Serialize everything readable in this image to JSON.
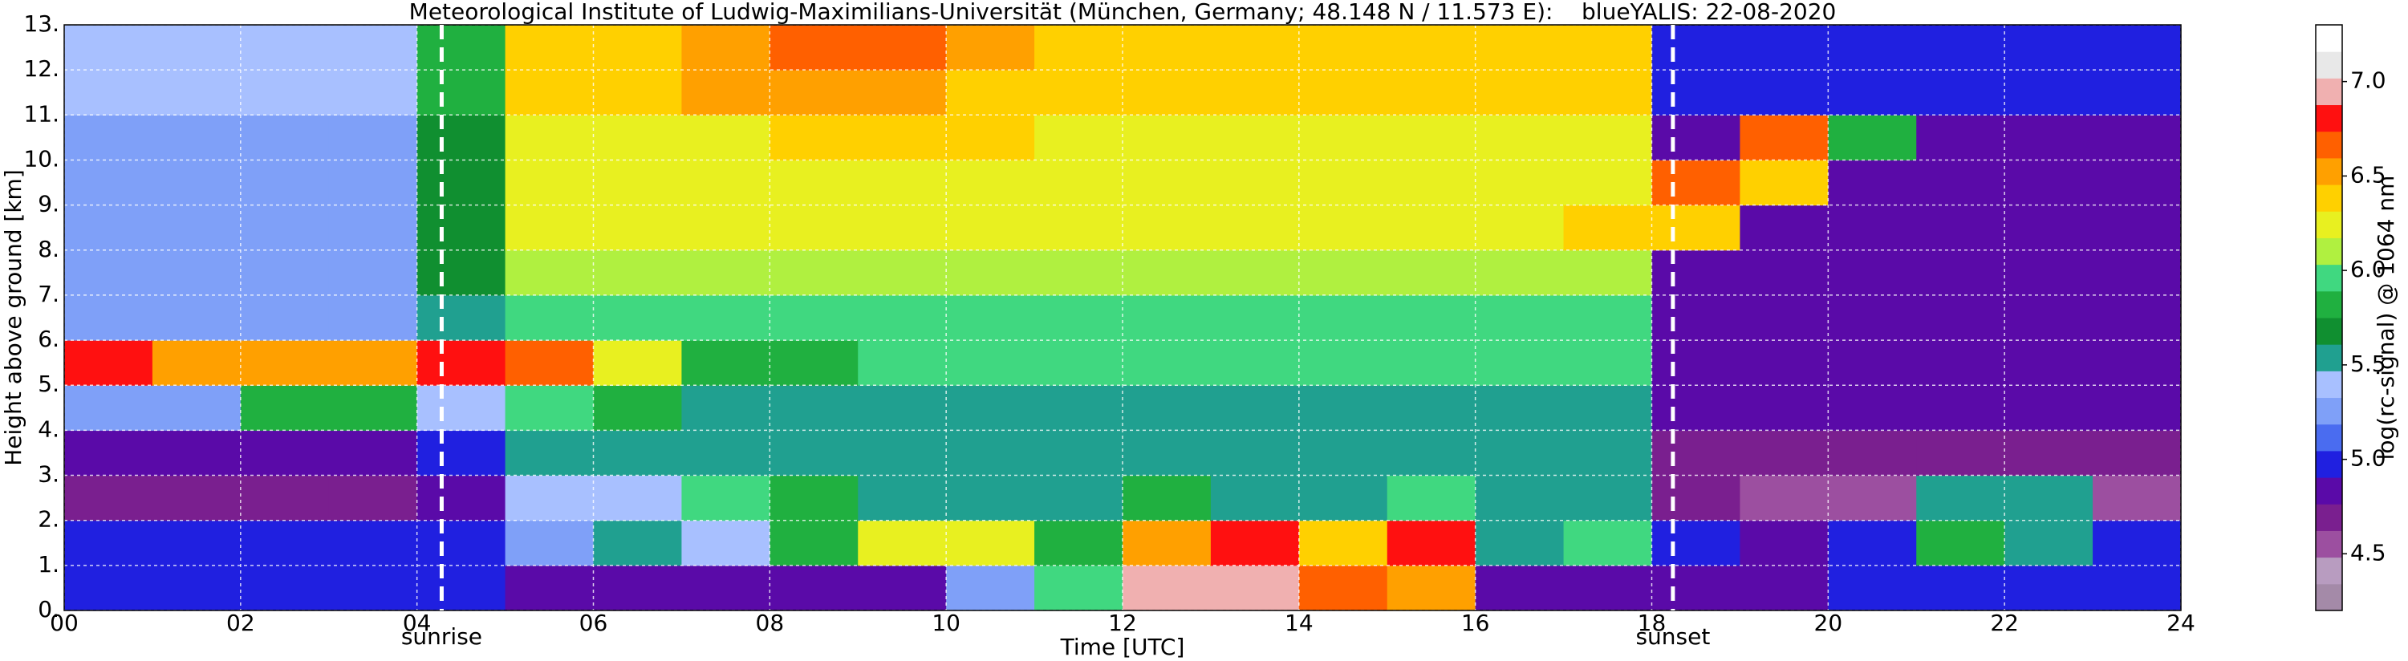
{
  "chart_data": {
    "type": "heatmap",
    "title": "Meteorological Institute of Ludwig-Maximilians-Universität (München, Germany; 48.148 N / 11.573 E):    blueYALIS: 22-08-2020",
    "x_label": "Time [UTC]",
    "y_label": "Height above ground [km]",
    "colorbar_label": "log(rc-signal) @ 1064 nm",
    "xbins": [
      0,
      1,
      2,
      3,
      4,
      5,
      6,
      7,
      8,
      9,
      10,
      11,
      12,
      13,
      14,
      15,
      16,
      17,
      18,
      19,
      20,
      21,
      22,
      23,
      24
    ],
    "ybins": [
      0,
      1,
      2,
      3,
      4,
      5,
      6,
      7,
      8,
      9,
      10,
      11,
      12,
      13
    ],
    "z": [
      [
        5.0,
        5.0,
        5.0,
        5.0,
        5.0,
        4.9,
        4.9,
        4.9,
        4.9,
        4.9,
        5.3,
        6.0,
        7.0,
        7.0,
        6.6,
        6.5,
        4.9,
        4.9,
        4.8,
        4.8,
        5.0,
        5.0,
        5.0,
        5.0
      ],
      [
        5.0,
        5.0,
        5.0,
        5.0,
        5.0,
        5.3,
        5.5,
        5.4,
        5.8,
        6.2,
        6.3,
        5.8,
        6.5,
        6.8,
        6.4,
        6.8,
        5.5,
        6.0,
        5.0,
        4.9,
        5.0,
        5.8,
        5.6,
        5.0
      ],
      [
        4.7,
        4.7,
        4.7,
        4.7,
        4.8,
        5.4,
        5.4,
        6.0,
        5.8,
        5.6,
        5.5,
        5.5,
        5.8,
        5.6,
        5.5,
        6.0,
        5.5,
        5.5,
        4.7,
        4.6,
        4.6,
        5.6,
        5.6,
        4.6
      ],
      [
        4.8,
        4.8,
        4.8,
        4.8,
        5.0,
        5.5,
        5.6,
        5.5,
        5.5,
        5.5,
        5.5,
        5.5,
        5.6,
        5.5,
        5.5,
        5.5,
        5.5,
        5.5,
        4.7,
        4.7,
        4.7,
        4.7,
        4.7,
        4.7
      ],
      [
        5.3,
        5.3,
        5.8,
        5.8,
        5.4,
        6.0,
        5.8,
        5.6,
        5.6,
        5.6,
        5.6,
        5.6,
        5.6,
        5.6,
        5.6,
        5.6,
        5.6,
        5.6,
        4.8,
        4.8,
        4.8,
        4.8,
        4.8,
        4.8
      ],
      [
        6.8,
        6.5,
        6.5,
        6.5,
        6.8,
        6.6,
        6.2,
        5.8,
        5.8,
        5.9,
        5.9,
        5.9,
        5.9,
        5.9,
        5.9,
        5.9,
        5.9,
        5.9,
        4.8,
        4.8,
        4.8,
        4.8,
        4.8,
        4.8
      ],
      [
        5.3,
        5.3,
        5.3,
        5.3,
        5.6,
        6.0,
        6.0,
        6.0,
        6.0,
        6.0,
        6.0,
        6.0,
        6.0,
        6.0,
        6.0,
        6.0,
        6.0,
        6.0,
        4.9,
        4.9,
        4.9,
        4.9,
        4.9,
        4.9
      ],
      [
        5.3,
        5.3,
        5.3,
        5.3,
        5.7,
        6.1,
        6.1,
        6.1,
        6.1,
        6.1,
        6.1,
        6.1,
        6.1,
        6.1,
        6.1,
        6.1,
        6.1,
        6.1,
        4.9,
        4.9,
        4.9,
        4.9,
        4.9,
        4.9
      ],
      [
        5.3,
        5.3,
        5.3,
        5.3,
        5.7,
        6.2,
        6.2,
        6.2,
        6.2,
        6.2,
        6.2,
        6.2,
        6.2,
        6.2,
        6.2,
        6.2,
        6.2,
        6.4,
        6.4,
        4.9,
        4.9,
        4.9,
        4.9,
        4.9
      ],
      [
        5.3,
        5.3,
        5.3,
        5.3,
        5.7,
        6.2,
        6.2,
        6.2,
        6.3,
        6.3,
        6.3,
        6.2,
        6.2,
        6.2,
        6.2,
        6.2,
        6.2,
        6.3,
        6.6,
        6.4,
        4.9,
        4.9,
        4.9,
        4.9
      ],
      [
        5.3,
        5.3,
        5.3,
        5.3,
        5.7,
        6.3,
        6.3,
        6.3,
        6.4,
        6.4,
        6.4,
        6.3,
        6.3,
        6.3,
        6.3,
        6.3,
        6.3,
        6.3,
        4.9,
        6.6,
        5.8,
        4.9,
        4.9,
        4.9
      ],
      [
        5.4,
        5.4,
        5.4,
        5.4,
        5.8,
        6.4,
        6.4,
        6.5,
        6.5,
        6.5,
        6.4,
        6.4,
        6.4,
        6.4,
        6.4,
        6.4,
        6.4,
        6.4,
        5.0,
        5.0,
        5.0,
        5.0,
        5.0,
        5.0
      ],
      [
        5.4,
        5.4,
        5.4,
        5.4,
        5.8,
        6.4,
        6.4,
        6.5,
        6.6,
        6.6,
        6.5,
        6.4,
        6.4,
        6.4,
        6.4,
        6.4,
        6.4,
        6.4,
        5.0,
        5.0,
        5.0,
        5.0,
        5.0,
        5.0
      ]
    ],
    "xlim": [
      0,
      24
    ],
    "ylim": [
      0,
      13
    ],
    "xticks": [
      {
        "value": 0,
        "label": "00"
      },
      {
        "value": 2,
        "label": "02"
      },
      {
        "value": 4,
        "label": "04"
      },
      {
        "value": 6,
        "label": "06"
      },
      {
        "value": 8,
        "label": "08"
      },
      {
        "value": 10,
        "label": "10"
      },
      {
        "value": 12,
        "label": "12"
      },
      {
        "value": 14,
        "label": "14"
      },
      {
        "value": 16,
        "label": "16"
      },
      {
        "value": 18,
        "label": "18"
      },
      {
        "value": 20,
        "label": "20"
      },
      {
        "value": 22,
        "label": "22"
      },
      {
        "value": 24,
        "label": "24"
      }
    ],
    "yticks": [
      {
        "value": 0,
        "label": "0."
      },
      {
        "value": 1,
        "label": "1."
      },
      {
        "value": 2,
        "label": "2."
      },
      {
        "value": 3,
        "label": "3."
      },
      {
        "value": 4,
        "label": "4."
      },
      {
        "value": 5,
        "label": "5."
      },
      {
        "value": 6,
        "label": "6."
      },
      {
        "value": 7,
        "label": "7."
      },
      {
        "value": 8,
        "label": "8."
      },
      {
        "value": 9,
        "label": "9."
      },
      {
        "value": 10,
        "label": "10."
      },
      {
        "value": 11,
        "label": "11."
      },
      {
        "value": 12,
        "label": "12."
      },
      {
        "value": 13,
        "label": "13."
      }
    ],
    "zlim": [
      4.2,
      7.3
    ],
    "zticks": [
      4.5,
      {
        "value": 5,
        "label": "5.0"
      },
      5.5,
      {
        "value": 6,
        "label": "6.0"
      },
      6.5,
      {
        "value": 7,
        "label": "7.0"
      }
    ],
    "colors": [
      "#a48aa8",
      "#b89cc0",
      "#9c4fa0",
      "#7a1f8f",
      "#5a0aa8",
      "#2020e0",
      "#4a6cf0",
      "#7fa0f8",
      "#a8c0ff",
      "#20a090",
      "#108f30",
      "#20b040",
      "#40d880",
      "#b0f040",
      "#e8f020",
      "#ffd000",
      "#ffa000",
      "#ff6000",
      "#ff1010",
      "#f0b0b0",
      "#e8e8e8",
      "#ffffff"
    ],
    "grid": true,
    "annotations": [
      {
        "text": "sunrise",
        "x": 4.28
      },
      {
        "text": "sunset",
        "x": 18.24
      }
    ]
  }
}
